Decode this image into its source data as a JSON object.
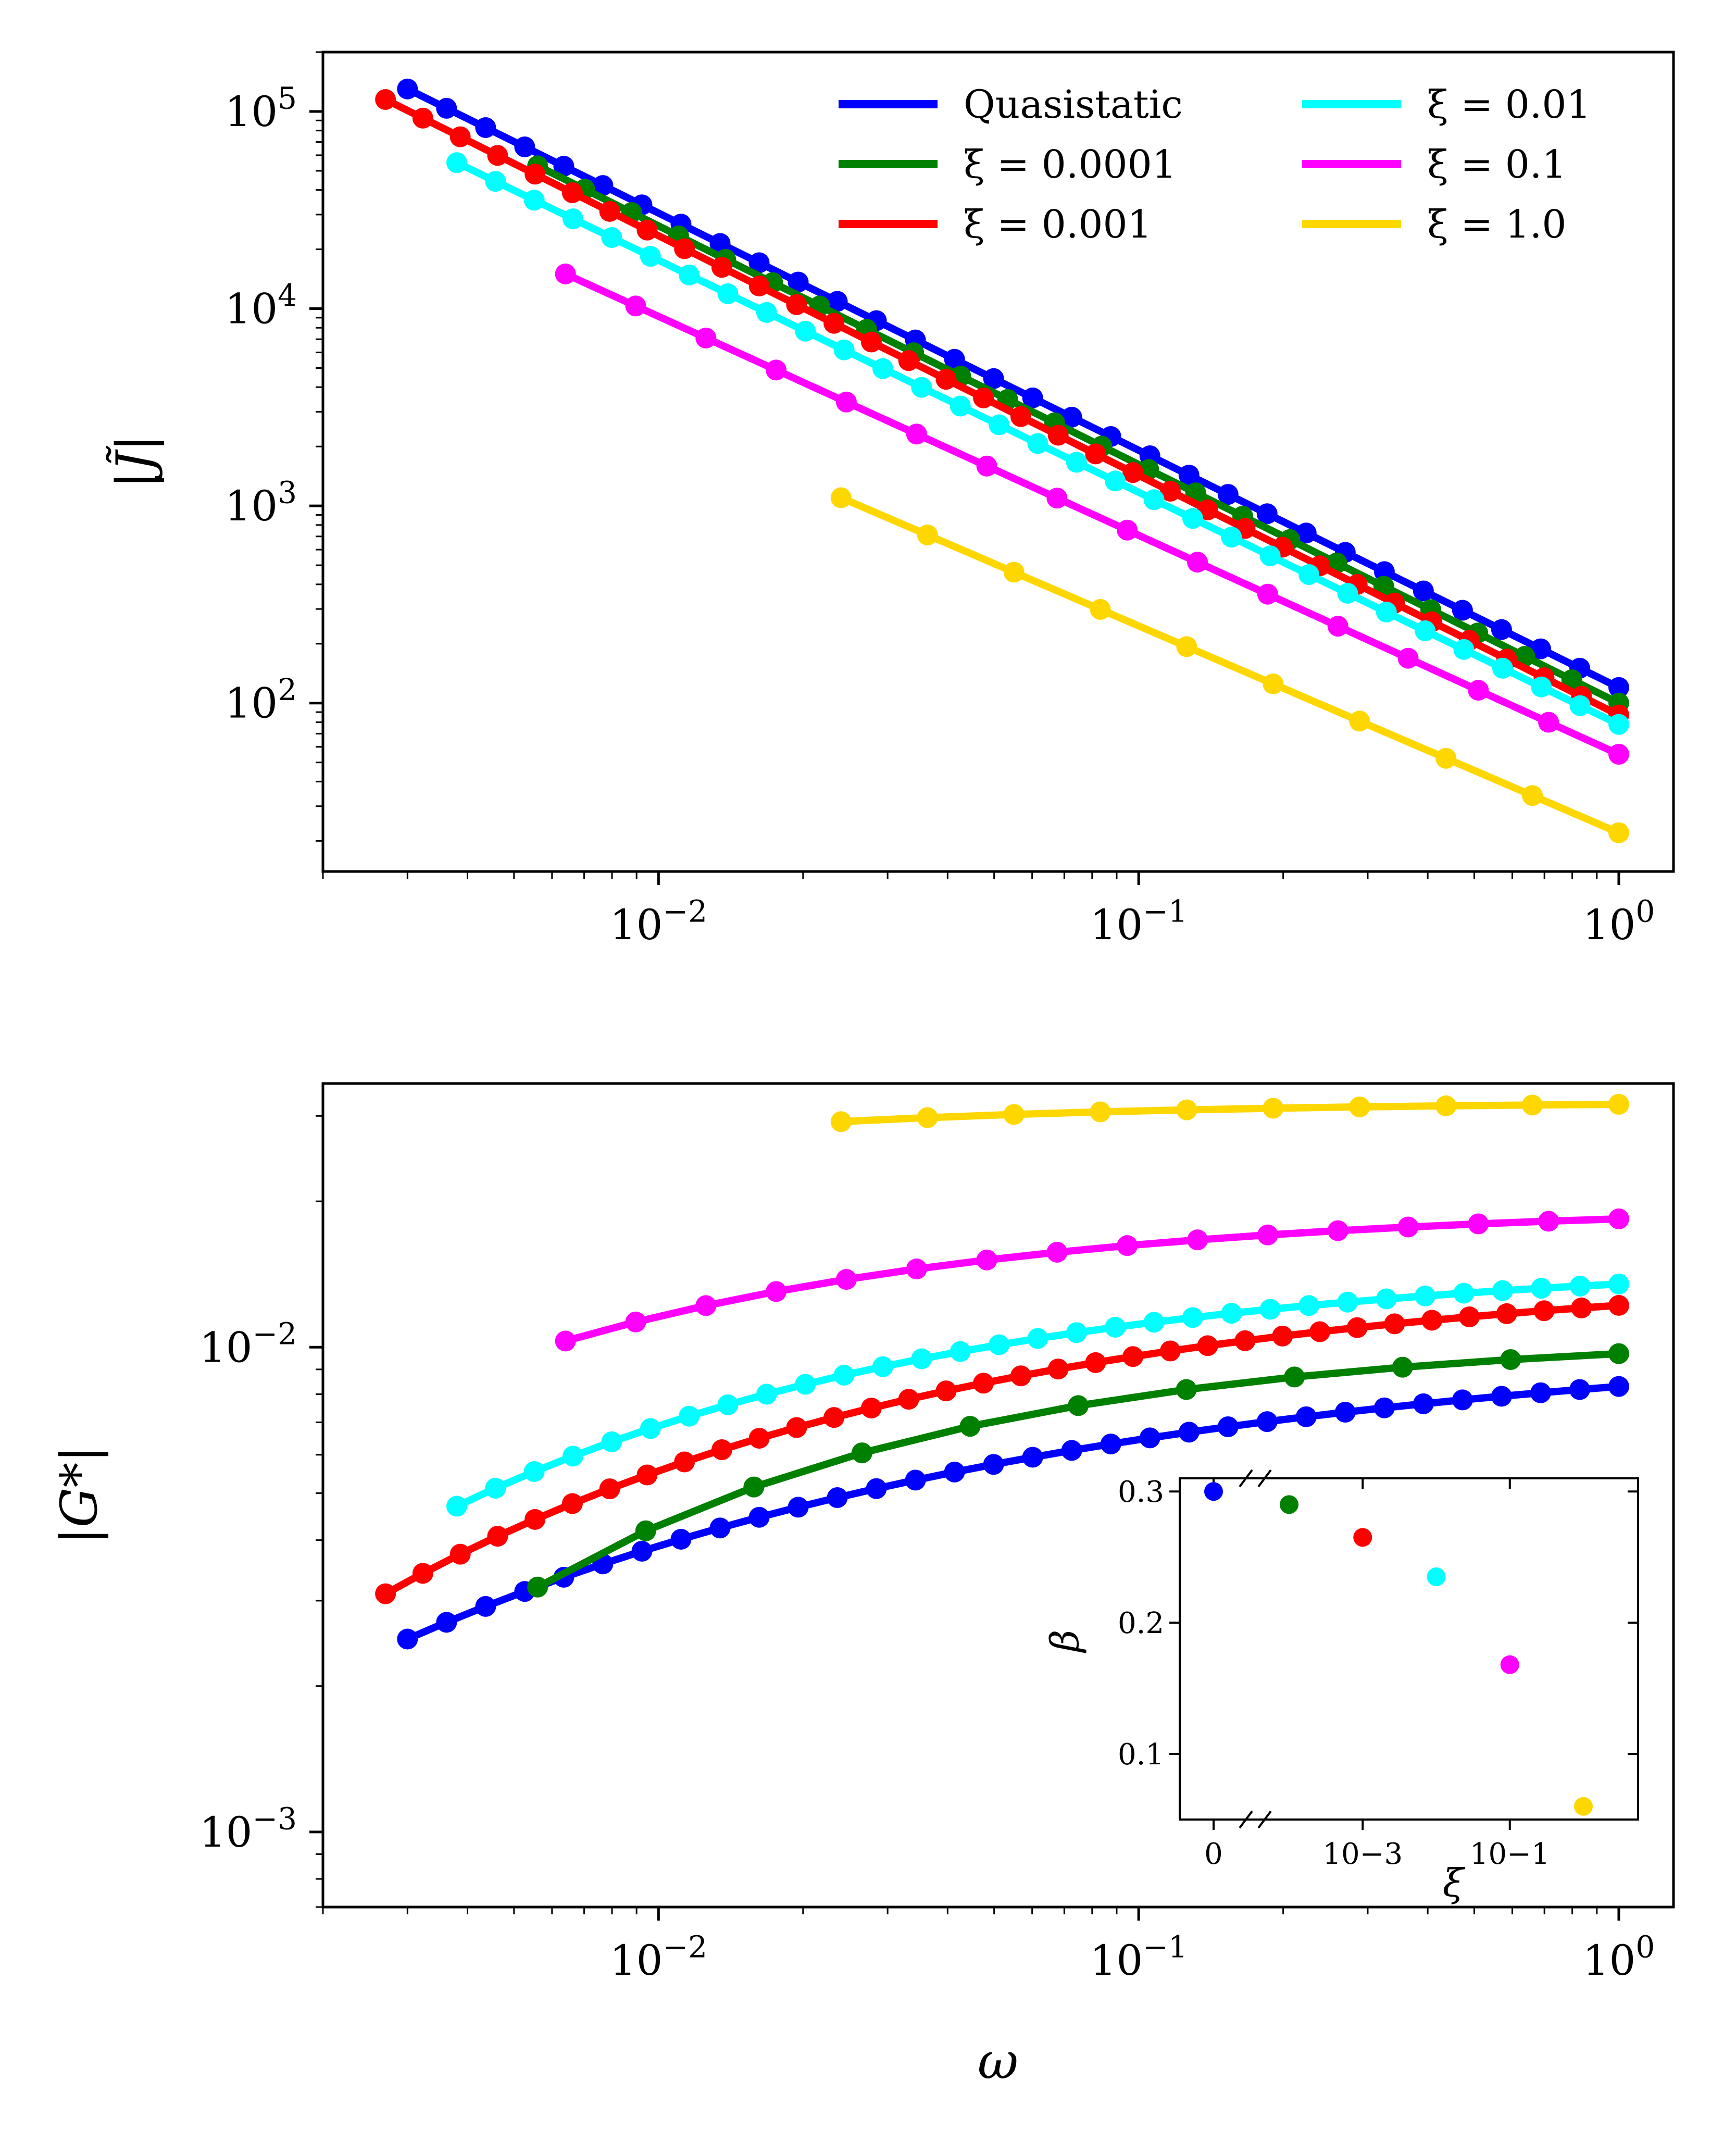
{
  "palette": {
    "Quasistatic": "#0000ff",
    "xi_0.0001": "#008000",
    "xi_0.001": "#ff0000",
    "xi_0.01": "#00ffff",
    "xi_0.1": "#ff00ff",
    "xi_1.0": "#ffd700"
  },
  "chart_data": [
    {
      "type": "line",
      "panel": "top",
      "xscale": "log",
      "yscale": "log",
      "xlim": [
        0.002,
        1.3
      ],
      "ylim": [
        14,
        200000
      ],
      "xticks": [
        {
          "value": 0.01,
          "base": "10",
          "exp": "−2"
        },
        {
          "value": 0.1,
          "base": "10",
          "exp": "−1"
        },
        {
          "value": 1,
          "base": "10",
          "exp": "0"
        }
      ],
      "yticks": [
        {
          "value": 100,
          "base": "10",
          "exp": "2"
        },
        {
          "value": 1000,
          "base": "10",
          "exp": "3"
        },
        {
          "value": 10000,
          "base": "10",
          "exp": "4"
        },
        {
          "value": 100000,
          "base": "10",
          "exp": "5"
        }
      ],
      "xlabel": "",
      "ylabel": "|J̃|",
      "legend": {
        "placement": "upper right, two columns",
        "entries": [
          "Quasistatic",
          "ξ = 0.0001",
          "ξ = 0.001",
          "ξ = 0.01",
          "ξ = 0.1",
          "ξ = 1.0"
        ]
      },
      "series": [
        {
          "name": "Quasistatic",
          "color": "#0000ff",
          "x_range": [
            0.003,
            1.0
          ],
          "n_points": 32,
          "y_start": 130000,
          "y_end": 120
        },
        {
          "name": "ξ = 0.0001",
          "color": "#008000",
          "x_range": [
            0.0056,
            1.0
          ],
          "n_points": 24,
          "y_start": 53000,
          "y_end": 100
        },
        {
          "name": "ξ = 0.001",
          "color": "#ff0000",
          "x_range": [
            0.0027,
            1.0
          ],
          "n_points": 34,
          "y_start": 115000,
          "y_end": 87
        },
        {
          "name": "ξ = 0.01",
          "color": "#00ffff",
          "x_range": [
            0.0038,
            1.0
          ],
          "n_points": 31,
          "y_start": 55000,
          "y_end": 78
        },
        {
          "name": "ξ = 0.1",
          "color": "#ff00ff",
          "x_range": [
            0.0064,
            1.0
          ],
          "n_points": 16,
          "y_start": 15000,
          "y_end": 55
        },
        {
          "name": "ξ = 1.0",
          "color": "#ffd700",
          "x_range": [
            0.024,
            1.0
          ],
          "n_points": 10,
          "y_start": 1100,
          "y_end": 22
        }
      ]
    },
    {
      "type": "line",
      "panel": "bottom",
      "xscale": "log",
      "yscale": "log",
      "xlim": [
        0.002,
        1.3
      ],
      "ylim": [
        0.0007,
        0.035
      ],
      "xticks": [
        {
          "value": 0.01,
          "base": "10",
          "exp": "−2"
        },
        {
          "value": 0.1,
          "base": "10",
          "exp": "−1"
        },
        {
          "value": 1,
          "base": "10",
          "exp": "0"
        }
      ],
      "yticks": [
        {
          "value": 0.001,
          "base": "10",
          "exp": "−3"
        },
        {
          "value": 0.01,
          "base": "10",
          "exp": "−2"
        }
      ],
      "xlabel": "ω",
      "ylabel": "|G*|",
      "series": [
        {
          "name": "Quasistatic",
          "color": "#0000ff",
          "x_range": [
            0.003,
            1.0
          ],
          "n_points": 32,
          "y_start": 0.0025,
          "y_end": 0.0083,
          "shape": 0.7
        },
        {
          "name": "ξ = 0.0001",
          "color": "#008000",
          "x_range": [
            0.0056,
            1.0
          ],
          "n_points": 11,
          "y_start": 0.0032,
          "y_end": 0.0097,
          "shape": 1.0
        },
        {
          "name": "ξ = 0.001",
          "color": "#ff0000",
          "x_range": [
            0.0027,
            1.0
          ],
          "n_points": 34,
          "y_start": 0.0031,
          "y_end": 0.0122,
          "shape": 0.85
        },
        {
          "name": "ξ = 0.01",
          "color": "#00ffff",
          "x_range": [
            0.0038,
            1.0
          ],
          "n_points": 31,
          "y_start": 0.0047,
          "y_end": 0.0135,
          "shape": 0.9
        },
        {
          "name": "ξ = 0.1",
          "color": "#ff00ff",
          "x_range": [
            0.0064,
            1.0
          ],
          "n_points": 16,
          "y_start": 0.0103,
          "y_end": 0.0184,
          "shape": 0.9
        },
        {
          "name": "ξ = 1.0",
          "color": "#ffd700",
          "x_range": [
            0.024,
            1.0
          ],
          "n_points": 10,
          "y_start": 0.0292,
          "y_end": 0.0317,
          "shape": 0.8
        }
      ]
    },
    {
      "type": "scatter",
      "panel": "inset",
      "xscale": "symlog (broken axis)",
      "ylim": [
        0.05,
        0.31
      ],
      "xticks": [
        "0",
        "10−3",
        "10−1"
      ],
      "yticks": [
        "0.1",
        "0.2",
        "0.3"
      ],
      "xlabel": "ξ",
      "ylabel": "β",
      "points": [
        {
          "name": "Quasistatic",
          "xi": 0,
          "beta": 0.3,
          "color": "#0000ff"
        },
        {
          "name": "ξ = 0.0001",
          "xi": 0.0001,
          "beta": 0.29,
          "color": "#008000"
        },
        {
          "name": "ξ = 0.001",
          "xi": 0.001,
          "beta": 0.265,
          "color": "#ff0000"
        },
        {
          "name": "ξ = 0.01",
          "xi": 0.01,
          "beta": 0.235,
          "color": "#00ffff"
        },
        {
          "name": "ξ = 0.1",
          "xi": 0.1,
          "beta": 0.168,
          "color": "#ff00ff"
        },
        {
          "name": "ξ = 1.0",
          "xi": 1.0,
          "beta": 0.06,
          "color": "#ffd700"
        }
      ]
    }
  ]
}
